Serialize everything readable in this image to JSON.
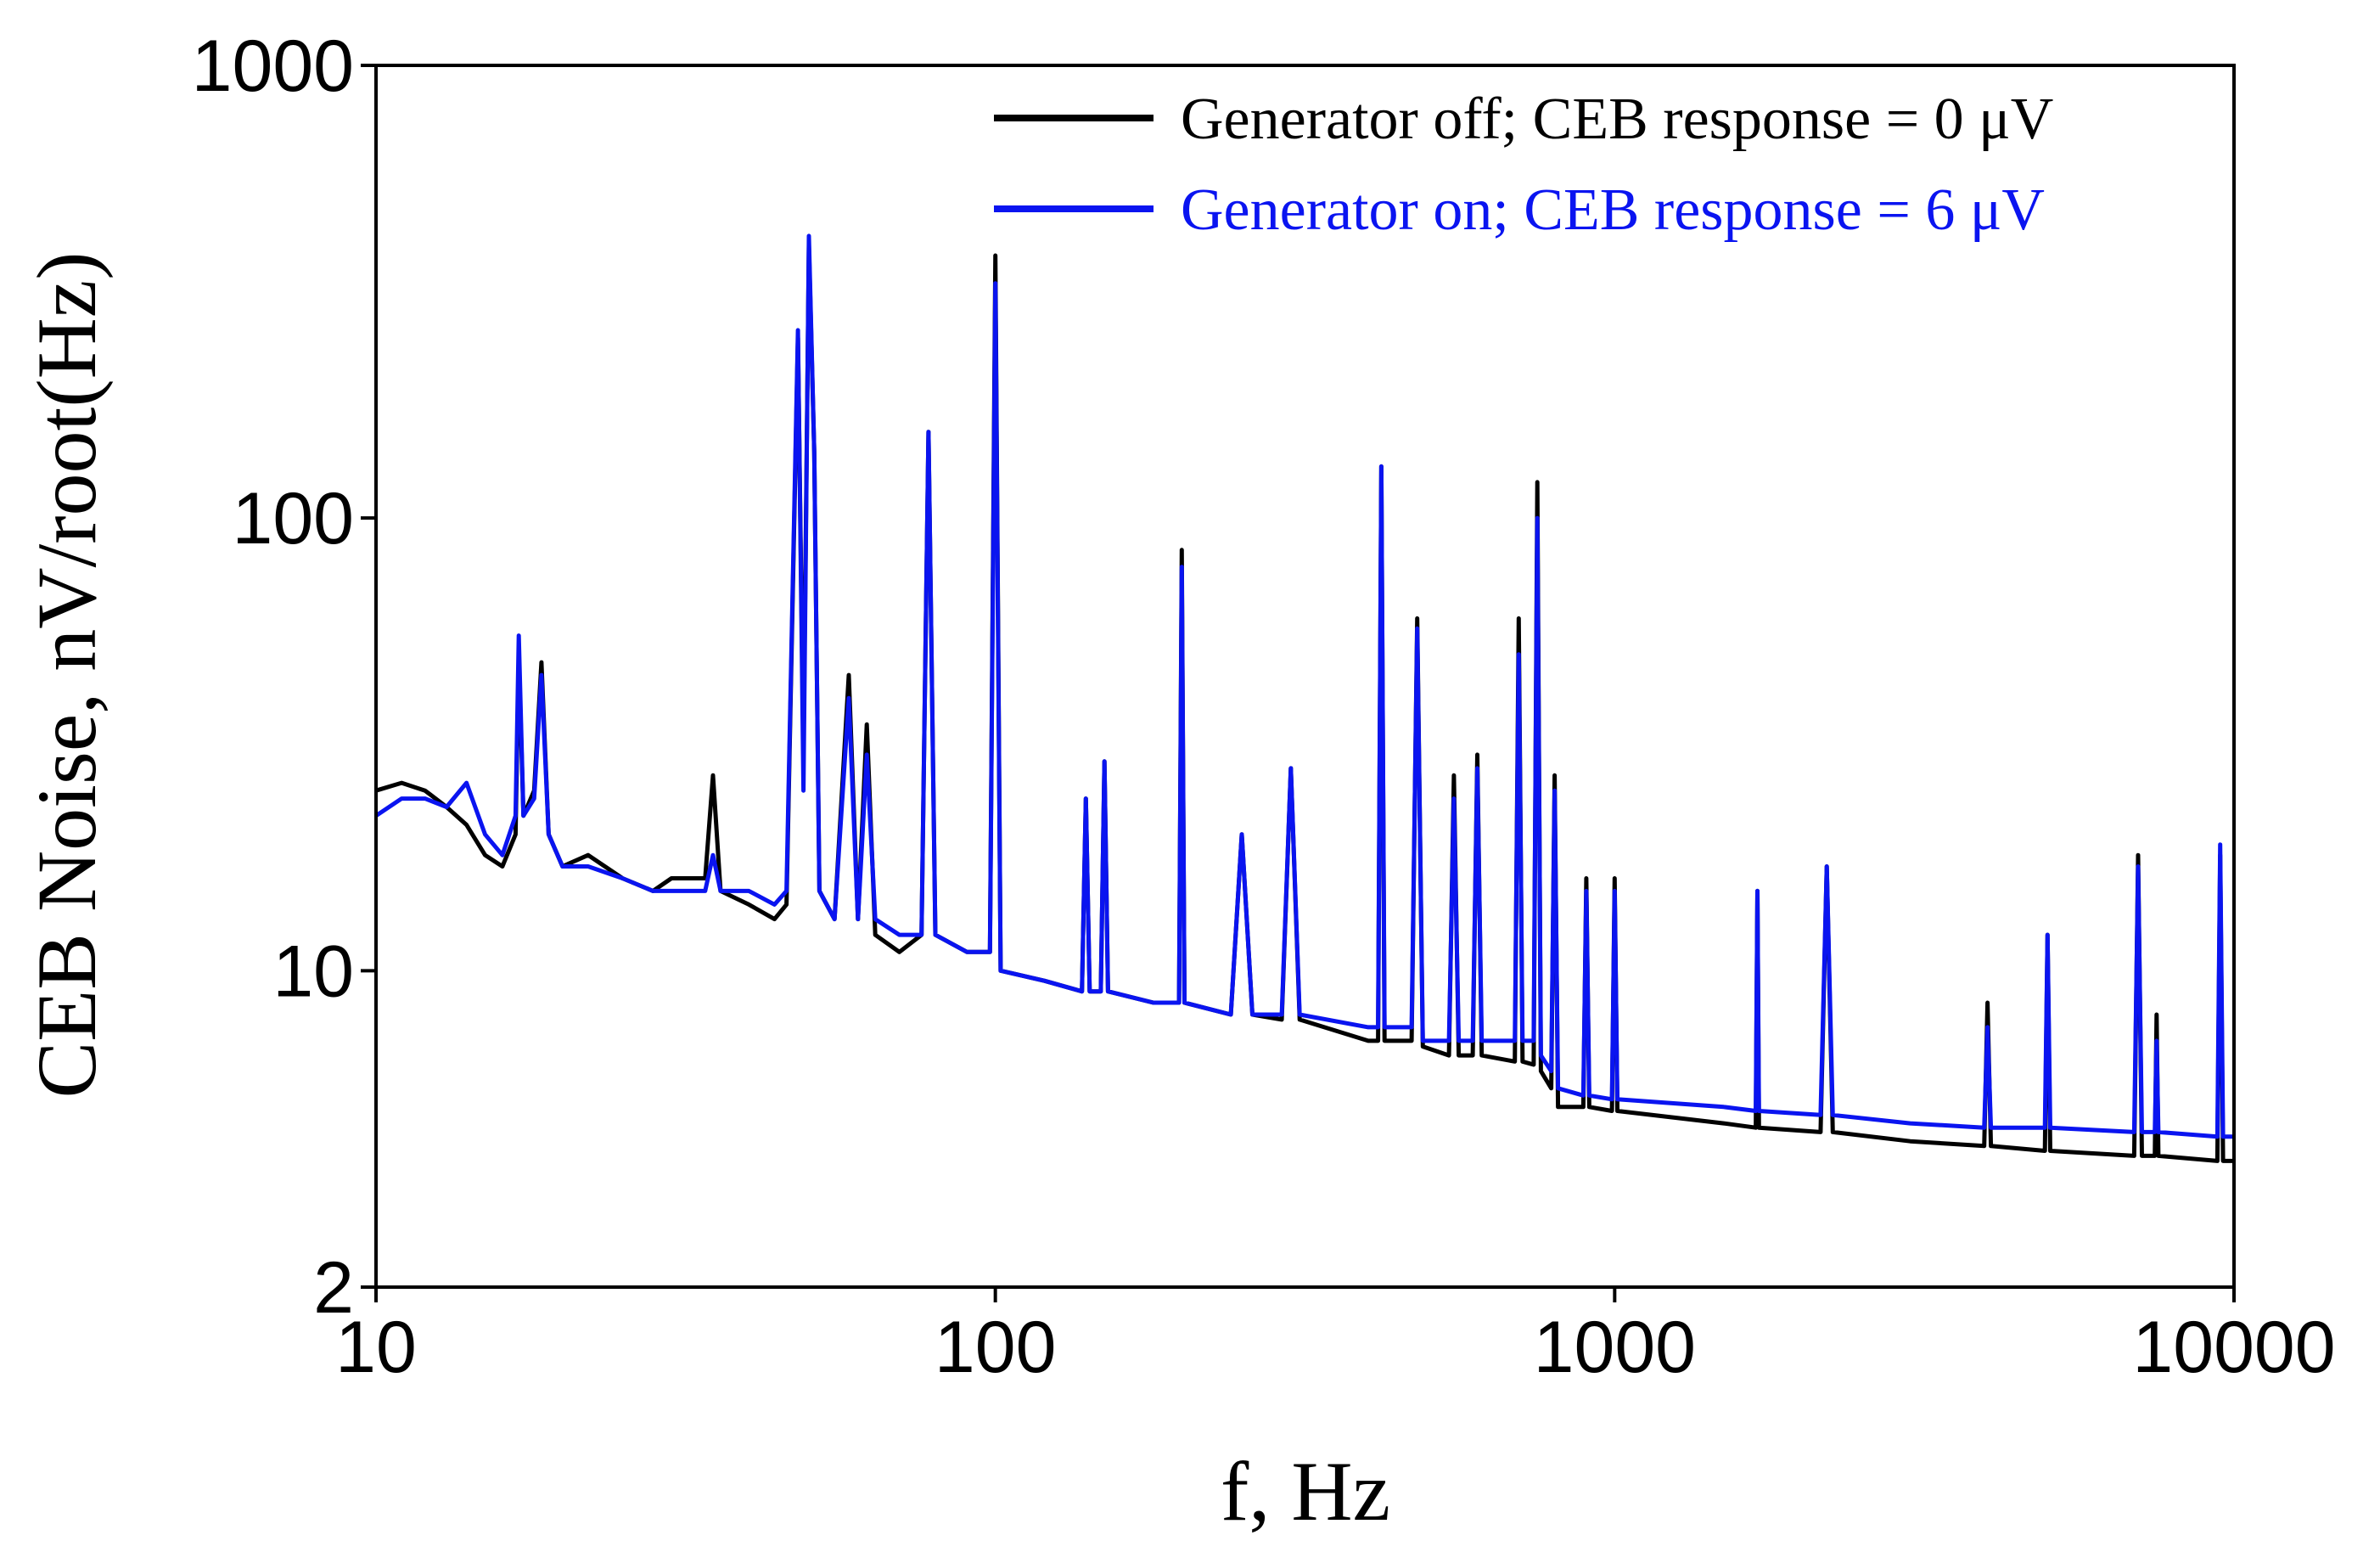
{
  "chart_data": {
    "type": "line",
    "xlabel": "f, Hz",
    "ylabel": "CEB Noise, nV/root(Hz)",
    "xscale": "log",
    "yscale": "log",
    "xlim": [
      10,
      10000
    ],
    "ylim": [
      2,
      1000
    ],
    "xticks": [
      10,
      100,
      1000,
      10000
    ],
    "yticks": [
      2,
      10,
      100,
      1000
    ],
    "legend": "upper right",
    "x": [
      10,
      11,
      12,
      13,
      14,
      15,
      16,
      16.8,
      17,
      17.3,
      18,
      18.5,
      19,
      20,
      22,
      25,
      28,
      30,
      34,
      35,
      36,
      40,
      44,
      46,
      48,
      49,
      50,
      51,
      52,
      55,
      58,
      60,
      62,
      64,
      70,
      76,
      78,
      80,
      90,
      98,
      100,
      102,
      120,
      138,
      140,
      142,
      148,
      150,
      152,
      180,
      198,
      200,
      202,
      240,
      250,
      260,
      290,
      300,
      310,
      400,
      415,
      420,
      425,
      470,
      480,
      490,
      540,
      550,
      560,
      590,
      600,
      610,
      690,
      700,
      710,
      740,
      750,
      760,
      790,
      800,
      810,
      890,
      900,
      910,
      990,
      1000,
      1010,
      1500,
      1690,
      1700,
      1710,
      2150,
      2200,
      2250,
      3000,
      3950,
      4000,
      4050,
      4950,
      5000,
      5050,
      6900,
      7000,
      7100,
      7450,
      7500,
      7550,
      9400,
      9500,
      9600,
      10000
    ],
    "series": [
      {
        "name": "Generator off; CEB response = 0 μV",
        "color": "#000000",
        "values": [
          25,
          26,
          25,
          23,
          21,
          18,
          17,
          20,
          50,
          22,
          25,
          48,
          20,
          17,
          18,
          16,
          15,
          16,
          16,
          27,
          15,
          14,
          13,
          14,
          250,
          30,
          400,
          140,
          15,
          13,
          45,
          13,
          35,
          12,
          11,
          12,
          155,
          12,
          11,
          11,
          380,
          10,
          9.5,
          9,
          24,
          9,
          9,
          29,
          9,
          8.5,
          8.5,
          85,
          8.5,
          8,
          20,
          8,
          7.8,
          28,
          7.8,
          7,
          7,
          130,
          7,
          7,
          60,
          6.8,
          6.5,
          27,
          6.5,
          6.5,
          30,
          6.5,
          6.3,
          60,
          6.3,
          6.2,
          120,
          6,
          5.5,
          27,
          5,
          5,
          16,
          5,
          4.9,
          16,
          4.9,
          4.6,
          4.5,
          15,
          4.5,
          4.4,
          17,
          4.4,
          4.2,
          4.1,
          8.5,
          4.1,
          4,
          12,
          4,
          3.9,
          18,
          3.9,
          3.9,
          8,
          3.9,
          3.8,
          18,
          3.8,
          3.8
        ]
      },
      {
        "name": "Generator on; CEB response = 6 μV",
        "color": "#0a14f0",
        "values": [
          22,
          24,
          24,
          23,
          26,
          20,
          18,
          22,
          55,
          22,
          24,
          45,
          20,
          17,
          17,
          16,
          15,
          15,
          15,
          18,
          15,
          15,
          14,
          15,
          260,
          25,
          420,
          140,
          15,
          13,
          40,
          13,
          30,
          13,
          12,
          12,
          155,
          12,
          11,
          11,
          330,
          10,
          9.5,
          9,
          24,
          9,
          9,
          29,
          9,
          8.5,
          8.5,
          78,
          8.5,
          8,
          20,
          8,
          8,
          28,
          8,
          7.5,
          7.5,
          130,
          7.5,
          7.5,
          57,
          7,
          7,
          24,
          7,
          7,
          28,
          7,
          7,
          50,
          7,
          7,
          100,
          6.5,
          6,
          25,
          5.5,
          5.3,
          15,
          5.3,
          5.2,
          15,
          5.2,
          5,
          4.9,
          15,
          4.9,
          4.8,
          17,
          4.8,
          4.6,
          4.5,
          7.5,
          4.5,
          4.5,
          12,
          4.5,
          4.4,
          17,
          4.4,
          4.4,
          7,
          4.4,
          4.3,
          19,
          4.3,
          4.3
        ]
      }
    ]
  }
}
